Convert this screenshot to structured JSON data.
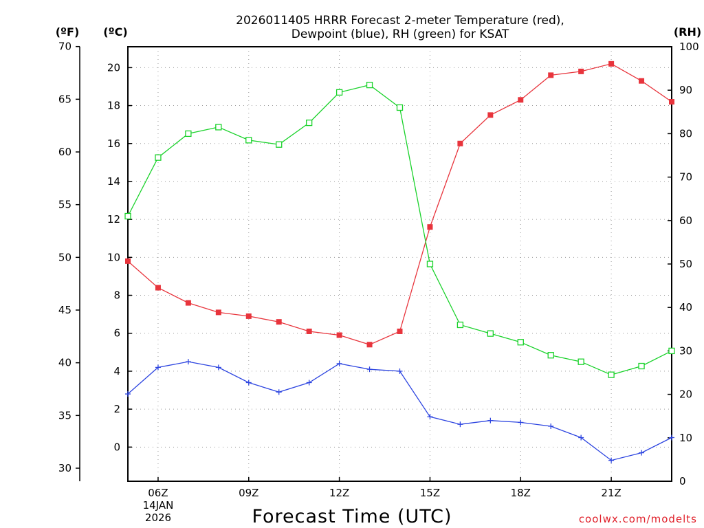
{
  "chart_data": {
    "type": "line",
    "title_line1": "2026011405 HRRR Forecast 2-meter Temperature (red),",
    "title_line2": "Dewpoint (blue), RH (green) for KSAT",
    "xlabel": "Forecast Time (UTC)",
    "credit": "coolwx.com/modelts",
    "left_f_unit": "(ºF)",
    "left_c_unit": "(ºC)",
    "right_unit": "(RH)",
    "x_hours": [
      5,
      6,
      7,
      8,
      9,
      10,
      11,
      12,
      13,
      14,
      15,
      16,
      17,
      18,
      19,
      20,
      21,
      22,
      23
    ],
    "x_range": [
      5,
      23
    ],
    "x_ticks": [
      {
        "hour": 6,
        "label": "06Z"
      },
      {
        "hour": 9,
        "label": "09Z"
      },
      {
        "hour": 12,
        "label": "12Z"
      },
      {
        "hour": 15,
        "label": "15Z"
      },
      {
        "hour": 18,
        "label": "18Z"
      },
      {
        "hour": 21,
        "label": "21Z"
      }
    ],
    "date_label_1": "14JAN",
    "date_label_2": "2026",
    "c_range": [
      -1.8,
      21.1
    ],
    "c_ticks": [
      0,
      2,
      4,
      6,
      8,
      10,
      12,
      14,
      16,
      18,
      20
    ],
    "f_ticks": [
      30,
      35,
      40,
      45,
      50,
      55,
      60,
      65,
      70
    ],
    "rh_range": [
      0,
      100
    ],
    "rh_ticks": [
      0,
      10,
      20,
      30,
      40,
      50,
      60,
      70,
      80,
      90,
      100
    ],
    "series": [
      {
        "name": "Temperature",
        "unit": "C",
        "color": "#e8343c",
        "marker": "filled-square",
        "values": [
          9.8,
          8.4,
          7.6,
          7.1,
          6.9,
          6.6,
          6.1,
          5.9,
          5.4,
          6.1,
          11.6,
          16.0,
          17.5,
          18.3,
          19.6,
          19.8,
          20.2,
          19.3,
          18.2
        ]
      },
      {
        "name": "Dewpoint",
        "unit": "C",
        "color": "#2c44e0",
        "marker": "plus",
        "values": [
          2.8,
          4.2,
          4.5,
          4.2,
          3.4,
          2.9,
          3.4,
          4.4,
          4.1,
          4.0,
          1.6,
          1.2,
          1.4,
          1.3,
          1.1,
          0.5,
          -0.7,
          -0.3,
          0.5
        ]
      },
      {
        "name": "RH",
        "unit": "%",
        "color": "#19d22a",
        "marker": "open-square",
        "values": [
          61,
          74.5,
          80,
          81.5,
          78.5,
          77.5,
          82.5,
          89.5,
          91.2,
          86,
          50,
          36,
          34,
          32,
          29,
          27.5,
          24.5,
          26.5,
          30
        ]
      }
    ]
  }
}
